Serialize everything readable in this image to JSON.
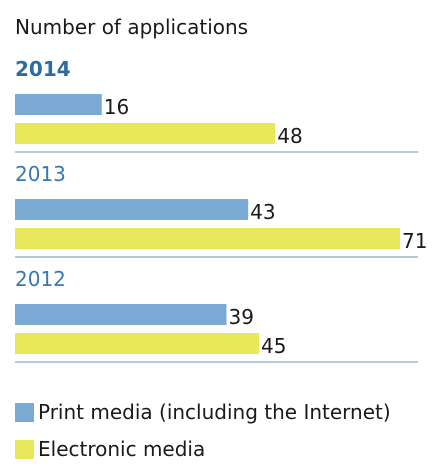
{
  "chart_data": {
    "type": "bar",
    "orientation": "horizontal",
    "title": "",
    "subtitle": "Number of applications",
    "categories": [
      "2014",
      "2013",
      "2012"
    ],
    "series": [
      {
        "name": "Print media (including the Internet)",
        "color": "#7aaad3",
        "values": [
          16,
          43,
          39
        ]
      },
      {
        "name": "Electronic media",
        "color": "#e8e85a",
        "values": [
          48,
          71,
          45
        ]
      }
    ],
    "xlim": [
      0,
      71
    ],
    "grid": false,
    "legend": "bottom",
    "highlight_category": "2014",
    "category_colors": {
      "highlight": "#2e6b9e",
      "normal": "#3b78b0"
    },
    "separator_color": "#6f94b8"
  }
}
